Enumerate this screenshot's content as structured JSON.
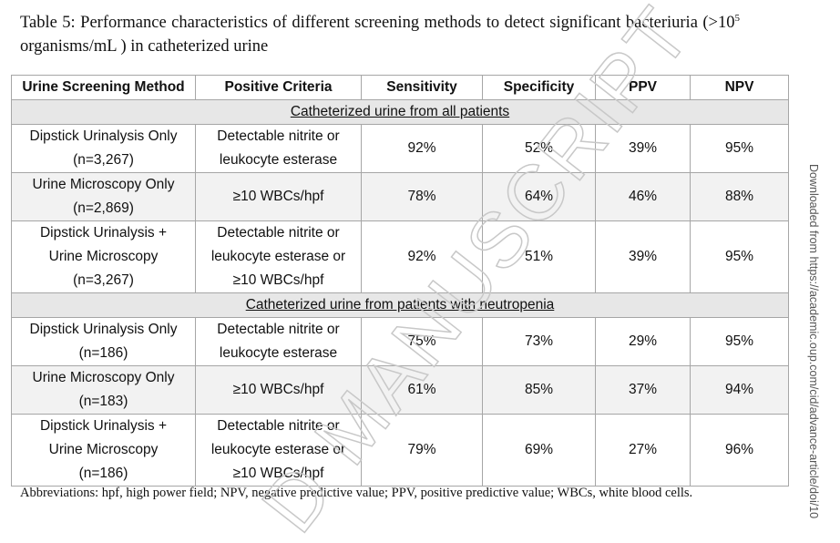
{
  "caption": {
    "before": "Table 5: Performance characteristics of different screening methods to detect significant bacteriuria (>10",
    "sup": "5",
    "after": " organisms/mL ) in catheterized urine"
  },
  "table": {
    "header": [
      "Urine Screening Method",
      "Positive Criteria",
      "Sensitivity",
      "Specificity",
      "PPV",
      "NPV"
    ],
    "sections": [
      {
        "title": "Catheterized urine from all patients",
        "rows": [
          [
            [
              "Dipstick Urinalysis Only",
              "(n=3,267)"
            ],
            [
              "Detectable nitrite or",
              "leukocyte esterase"
            ],
            [
              "92%"
            ],
            [
              "52%"
            ],
            [
              "39%"
            ],
            [
              "95%"
            ]
          ],
          [
            [
              "Urine Microscopy Only",
              "(n=2,869)"
            ],
            [
              "≥10 WBCs/hpf"
            ],
            [
              "78%"
            ],
            [
              "64%"
            ],
            [
              "46%"
            ],
            [
              "88%"
            ]
          ],
          [
            [
              "Dipstick Urinalysis +",
              "Urine Microscopy",
              "(n=3,267)"
            ],
            [
              "Detectable nitrite or",
              "leukocyte esterase or",
              "≥10 WBCs/hpf"
            ],
            [
              "92%"
            ],
            [
              "51%"
            ],
            [
              "39%"
            ],
            [
              "95%"
            ]
          ]
        ]
      },
      {
        "title": "Catheterized urine from patients with neutropenia",
        "rows": [
          [
            [
              "Dipstick Urinalysis Only",
              "(n=186)"
            ],
            [
              "Detectable nitrite or",
              "leukocyte esterase"
            ],
            [
              "75%"
            ],
            [
              "73%"
            ],
            [
              "29%"
            ],
            [
              "95%"
            ]
          ],
          [
            [
              "Urine Microscopy Only",
              "(n=183)"
            ],
            [
              "≥10 WBCs/hpf"
            ],
            [
              "61%"
            ],
            [
              "85%"
            ],
            [
              "37%"
            ],
            [
              "94%"
            ]
          ],
          [
            [
              "Dipstick Urinalysis +",
              "Urine Microscopy",
              "(n=186)"
            ],
            [
              "Detectable nitrite or",
              "leukocyte esterase or",
              "≥10 WBCs/hpf"
            ],
            [
              "79%"
            ],
            [
              "69%"
            ],
            [
              "27%"
            ],
            [
              "96%"
            ]
          ]
        ]
      }
    ]
  },
  "footnote": "Abbreviations: hpf, high power field; NPV, negative predictive value; PPV, positive predictive value; WBCs, white blood cells.",
  "watermark": "D MANUSCRIPT",
  "side_note": "Downloaded from https://academic.oup.com/cid/advance-article/doi/10"
}
